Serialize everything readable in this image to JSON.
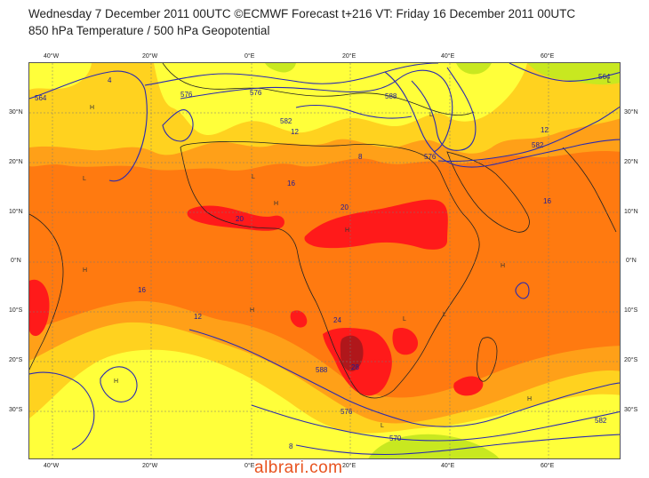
{
  "header": {
    "line1": "Wednesday 7 December 2011 00UTC ©ECMWF Forecast t+216 VT: Friday 16 December 2011 00UTC",
    "line2": "850 hPa Temperature / 500 hPa Geopotential"
  },
  "axes": {
    "lon_top": [
      "40°W",
      "20°W",
      "0°E",
      "20°E",
      "40°E",
      "60°E"
    ],
    "lon_bottom": [
      "40°W",
      "20°W",
      "0°E",
      "20°E",
      "40°E",
      "60°E"
    ],
    "lat_left": [
      "30°N",
      "20°N",
      "10°N",
      "0°N",
      "10°S",
      "20°S",
      "30°S"
    ],
    "lat_right": [
      "30°N",
      "20°N",
      "10°N",
      "0°N",
      "10°S",
      "20°S",
      "30°S"
    ]
  },
  "temperature_labels": [
    "4",
    "8",
    "12",
    "16",
    "20",
    "24",
    "28",
    "12",
    "16",
    "20",
    "12",
    "16",
    "8"
  ],
  "geopotential_labels": [
    "564",
    "576",
    "576",
    "582",
    "588",
    "576",
    "582",
    "564",
    "570",
    "576",
    "588",
    "582"
  ],
  "pressure_centers": [
    "H",
    "L",
    "H",
    "L",
    "H",
    "L",
    "H",
    "L",
    "H",
    "H",
    "L",
    "H",
    "L",
    "H",
    "L"
  ],
  "colors": {
    "cold": "#c8e820",
    "cool": "#ffff3a",
    "mild": "#ffd21f",
    "warm": "#ffa018",
    "hot": "#ff7a10",
    "very_hot": "#ff1a1a",
    "extreme": "#b0171b",
    "contour": "#2a2ab0"
  },
  "watermark": "albrari.com"
}
